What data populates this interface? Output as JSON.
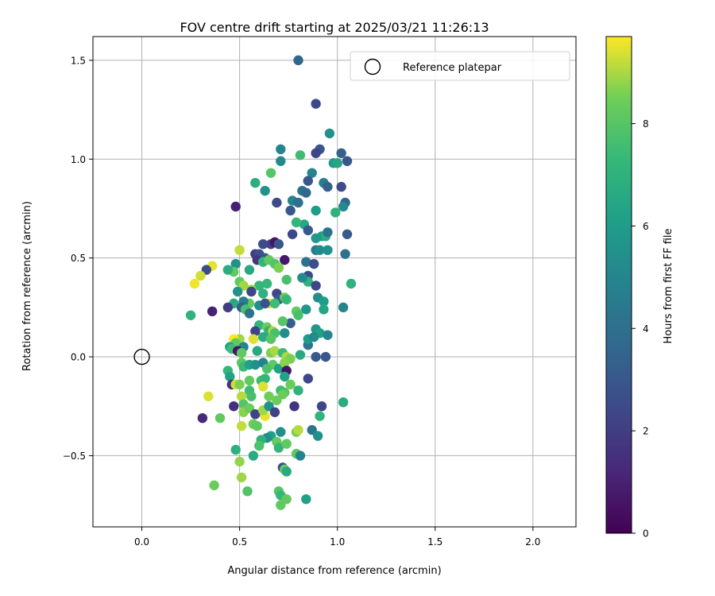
{
  "chart_data": {
    "type": "scatter",
    "title": "FOV centre drift starting at 2025/03/21 11:26:13",
    "xlabel": "Angular distance from reference (arcmin)",
    "ylabel": "Rotation from reference (arcmin)",
    "xlim": [
      -0.25,
      2.22
    ],
    "ylim": [
      -0.86,
      1.62
    ],
    "x_ticks": [
      "0.0",
      "0.5",
      "1.0",
      "1.5",
      "2.0"
    ],
    "x_tick_values": [
      0,
      0.5,
      1.0,
      1.5,
      2.0
    ],
    "y_ticks": [
      "−0.5",
      "0.0",
      "0.5",
      "1.0",
      "1.5"
    ],
    "y_tick_values": [
      -0.5,
      0,
      0.5,
      1.0,
      1.5
    ],
    "grid": true,
    "legend_position": "top-right",
    "legend_label": "Reference platepar",
    "reference_point": [
      0,
      0
    ],
    "colorbar": {
      "label": "Hours from first FF file",
      "range": [
        0,
        9.7
      ],
      "ticks": [
        "0",
        "2",
        "4",
        "6",
        "8"
      ],
      "tick_values": [
        0,
        2,
        4,
        6,
        8
      ],
      "colormap": "viridis"
    },
    "points": [
      [
        0.8,
        1.5,
        3.6
      ],
      [
        0.89,
        1.28,
        2.4
      ],
      [
        0.96,
        1.13,
        5.5
      ],
      [
        0.71,
        1.05,
        5.0
      ],
      [
        0.91,
        1.05,
        2.9
      ],
      [
        0.89,
        1.03,
        2.2
      ],
      [
        1.02,
        1.03,
        3.4
      ],
      [
        1.05,
        0.99,
        3.0
      ],
      [
        0.71,
        0.99,
        5.2
      ],
      [
        0.81,
        1.02,
        7.5
      ],
      [
        0.66,
        0.93,
        8.0
      ],
      [
        0.87,
        0.93,
        5.0
      ],
      [
        0.98,
        0.98,
        6.0
      ],
      [
        1.0,
        0.98,
        6.4
      ],
      [
        0.58,
        0.88,
        6.8
      ],
      [
        0.85,
        0.89,
        3.0
      ],
      [
        0.93,
        0.88,
        4.6
      ],
      [
        0.95,
        0.86,
        3.4
      ],
      [
        1.02,
        0.86,
        2.5
      ],
      [
        0.82,
        0.84,
        4.2
      ],
      [
        0.84,
        0.83,
        3.7
      ],
      [
        0.63,
        0.84,
        5.5
      ],
      [
        0.69,
        0.78,
        2.5
      ],
      [
        0.77,
        0.79,
        5.0
      ],
      [
        0.8,
        0.78,
        4.0
      ],
      [
        1.04,
        0.78,
        3.5
      ],
      [
        1.03,
        0.76,
        5.2
      ],
      [
        0.76,
        0.74,
        3.0
      ],
      [
        0.89,
        0.74,
        6.0
      ],
      [
        0.99,
        0.73,
        7.0
      ],
      [
        0.48,
        0.76,
        1.0
      ],
      [
        0.83,
        0.67,
        6.5
      ],
      [
        0.79,
        0.68,
        7.2
      ],
      [
        0.85,
        0.64,
        3.1
      ],
      [
        0.77,
        0.62,
        2.4
      ],
      [
        0.92,
        0.61,
        6.0
      ],
      [
        0.94,
        0.61,
        6.7
      ],
      [
        0.89,
        0.6,
        5.8
      ],
      [
        1.05,
        0.62,
        3.2
      ],
      [
        0.95,
        0.63,
        4.1
      ],
      [
        0.66,
        0.57,
        2.1
      ],
      [
        0.68,
        0.58,
        0.6
      ],
      [
        0.62,
        0.57,
        2.5
      ],
      [
        0.7,
        0.57,
        3.0
      ],
      [
        0.5,
        0.54,
        9.2
      ],
      [
        0.89,
        0.54,
        4.5
      ],
      [
        0.91,
        0.54,
        5.2
      ],
      [
        0.95,
        0.54,
        5.5
      ],
      [
        1.04,
        0.52,
        4.0
      ],
      [
        0.58,
        0.52,
        2.0
      ],
      [
        0.6,
        0.52,
        2.7
      ],
      [
        0.63,
        0.5,
        3.0
      ],
      [
        0.59,
        0.49,
        1.7
      ],
      [
        0.62,
        0.48,
        7.2
      ],
      [
        0.65,
        0.49,
        8.2
      ],
      [
        0.73,
        0.49,
        0.7
      ],
      [
        0.68,
        0.47,
        7.9
      ],
      [
        0.7,
        0.45,
        8.6
      ],
      [
        0.48,
        0.47,
        5.6
      ],
      [
        0.55,
        0.44,
        6.6
      ],
      [
        0.47,
        0.43,
        8.2
      ],
      [
        0.44,
        0.44,
        6.8
      ],
      [
        0.36,
        0.46,
        9.5
      ],
      [
        0.33,
        0.44,
        2.5
      ],
      [
        0.3,
        0.41,
        9.3
      ],
      [
        0.27,
        0.37,
        9.6
      ],
      [
        0.84,
        0.48,
        4.2
      ],
      [
        0.88,
        0.47,
        2.6
      ],
      [
        0.85,
        0.41,
        2.5
      ],
      [
        0.85,
        0.38,
        7.0
      ],
      [
        0.89,
        0.36,
        2.3
      ],
      [
        0.82,
        0.4,
        5.2
      ],
      [
        1.07,
        0.37,
        7.0
      ],
      [
        0.5,
        0.38,
        8.2
      ],
      [
        0.52,
        0.36,
        8.9
      ],
      [
        0.6,
        0.36,
        7.2
      ],
      [
        0.64,
        0.37,
        7.2
      ],
      [
        0.56,
        0.34,
        8.9
      ],
      [
        0.56,
        0.33,
        2.3
      ],
      [
        0.49,
        0.33,
        5.6
      ],
      [
        0.74,
        0.39,
        7.7
      ],
      [
        0.62,
        0.32,
        7.0
      ],
      [
        0.69,
        0.32,
        2.4
      ],
      [
        0.7,
        0.29,
        3.1
      ],
      [
        0.73,
        0.3,
        8.3
      ],
      [
        0.74,
        0.29,
        7.3
      ],
      [
        0.9,
        0.3,
        5.3
      ],
      [
        0.93,
        0.28,
        6.0
      ],
      [
        0.65,
        0.27,
        9.4
      ],
      [
        0.68,
        0.27,
        7.5
      ],
      [
        0.55,
        0.27,
        8.2
      ],
      [
        0.52,
        0.28,
        4.7
      ],
      [
        0.47,
        0.27,
        6.6
      ],
      [
        0.51,
        0.25,
        3.3
      ],
      [
        0.53,
        0.24,
        7.7
      ],
      [
        0.44,
        0.25,
        2.0
      ],
      [
        0.55,
        0.22,
        4.2
      ],
      [
        0.6,
        0.26,
        5.5
      ],
      [
        0.63,
        0.27,
        2.8
      ],
      [
        0.79,
        0.23,
        8.2
      ],
      [
        0.84,
        0.24,
        5.7
      ],
      [
        0.93,
        0.24,
        6.4
      ],
      [
        1.03,
        0.25,
        5.0
      ],
      [
        0.36,
        0.23,
        1.0
      ],
      [
        0.25,
        0.21,
        7.0
      ],
      [
        0.8,
        0.21,
        7.7
      ],
      [
        0.76,
        0.17,
        3.3
      ],
      [
        0.72,
        0.18,
        8.0
      ],
      [
        0.6,
        0.16,
        7.2
      ],
      [
        0.64,
        0.15,
        8.4
      ],
      [
        0.65,
        0.13,
        6.9
      ],
      [
        0.58,
        0.13,
        2.2
      ],
      [
        0.67,
        0.13,
        9.0
      ],
      [
        0.68,
        0.12,
        7.7
      ],
      [
        0.73,
        0.12,
        5.3
      ],
      [
        0.62,
        0.1,
        6.7
      ],
      [
        0.57,
        0.09,
        9.4
      ],
      [
        0.5,
        0.09,
        8.9
      ],
      [
        0.47,
        0.09,
        9.7
      ],
      [
        0.48,
        0.07,
        8.2
      ],
      [
        0.52,
        0.05,
        5.0
      ],
      [
        0.45,
        0.05,
        6.3
      ],
      [
        0.46,
        0.04,
        7.5
      ],
      [
        0.49,
        0.03,
        0.6
      ],
      [
        0.51,
        0.02,
        8.2
      ],
      [
        0.59,
        0.03,
        6.6
      ],
      [
        0.66,
        0.02,
        8.6
      ],
      [
        0.68,
        0.03,
        9.0
      ],
      [
        0.72,
        0.02,
        7.4
      ],
      [
        0.74,
        0.0,
        9.0
      ],
      [
        0.76,
        -0.01,
        8.6
      ],
      [
        0.81,
        0.01,
        6.6
      ],
      [
        0.85,
        0.06,
        4.3
      ],
      [
        0.85,
        0.09,
        6.0
      ],
      [
        0.89,
        0.14,
        5.7
      ],
      [
        0.91,
        0.12,
        6.2
      ],
      [
        0.88,
        0.1,
        5.2
      ],
      [
        0.95,
        0.11,
        5.0
      ],
      [
        0.89,
        0.0,
        3.1
      ],
      [
        0.94,
        0.0,
        2.9
      ],
      [
        0.66,
        0.09,
        8.0
      ],
      [
        0.51,
        -0.03,
        8.1
      ],
      [
        0.52,
        -0.05,
        7.4
      ],
      [
        0.55,
        -0.04,
        6.2
      ],
      [
        0.58,
        -0.04,
        5.5
      ],
      [
        0.62,
        -0.03,
        4.9
      ],
      [
        0.67,
        -0.04,
        8.2
      ],
      [
        0.7,
        -0.06,
        6.2
      ],
      [
        0.73,
        -0.03,
        8.7
      ],
      [
        0.74,
        -0.07,
        0.6
      ],
      [
        0.64,
        -0.06,
        7.8
      ],
      [
        0.44,
        -0.07,
        7.2
      ],
      [
        0.45,
        -0.1,
        6.3
      ],
      [
        0.46,
        -0.14,
        1.6
      ],
      [
        0.48,
        -0.14,
        9.3
      ],
      [
        0.5,
        -0.14,
        8.6
      ],
      [
        0.55,
        -0.12,
        8.2
      ],
      [
        0.61,
        -0.12,
        7.5
      ],
      [
        0.63,
        -0.11,
        7.2
      ],
      [
        0.62,
        -0.15,
        9.4
      ],
      [
        0.55,
        -0.17,
        7.5
      ],
      [
        0.73,
        -0.1,
        6.2
      ],
      [
        0.76,
        -0.14,
        8.4
      ],
      [
        0.8,
        -0.17,
        7.0
      ],
      [
        0.73,
        -0.18,
        8.0
      ],
      [
        0.85,
        -0.11,
        2.4
      ],
      [
        0.34,
        -0.2,
        9.4
      ],
      [
        0.51,
        -0.2,
        9.1
      ],
      [
        0.56,
        -0.2,
        7.7
      ],
      [
        0.65,
        -0.2,
        8.5
      ],
      [
        0.69,
        -0.22,
        8.4
      ],
      [
        0.71,
        -0.17,
        7.5
      ],
      [
        0.72,
        -0.19,
        8.4
      ],
      [
        0.47,
        -0.25,
        1.5
      ],
      [
        0.52,
        -0.24,
        8.0
      ],
      [
        0.52,
        -0.28,
        8.7
      ],
      [
        0.55,
        -0.26,
        8.4
      ],
      [
        0.58,
        -0.29,
        2.2
      ],
      [
        0.63,
        -0.3,
        9.5
      ],
      [
        0.62,
        -0.27,
        8.9
      ],
      [
        0.65,
        -0.25,
        5.6
      ],
      [
        0.68,
        -0.28,
        2.2
      ],
      [
        0.78,
        -0.25,
        1.7
      ],
      [
        0.92,
        -0.25,
        2.3
      ],
      [
        1.03,
        -0.23,
        6.8
      ],
      [
        0.31,
        -0.31,
        1.2
      ],
      [
        0.4,
        -0.31,
        8.2
      ],
      [
        0.51,
        -0.35,
        9.2
      ],
      [
        0.57,
        -0.34,
        8.4
      ],
      [
        0.59,
        -0.35,
        8.2
      ],
      [
        0.91,
        -0.3,
        7.1
      ],
      [
        0.79,
        -0.38,
        8.5
      ],
      [
        0.8,
        -0.37,
        9.1
      ],
      [
        0.87,
        -0.37,
        4.3
      ],
      [
        0.9,
        -0.4,
        5.5
      ],
      [
        0.71,
        -0.38,
        5.4
      ],
      [
        0.66,
        -0.4,
        6.2
      ],
      [
        0.64,
        -0.41,
        5.4
      ],
      [
        0.61,
        -0.42,
        7.0
      ],
      [
        0.6,
        -0.45,
        7.8
      ],
      [
        0.69,
        -0.43,
        8.3
      ],
      [
        0.7,
        -0.46,
        7.2
      ],
      [
        0.74,
        -0.44,
        8.2
      ],
      [
        0.48,
        -0.47,
        6.9
      ],
      [
        0.57,
        -0.5,
        6.7
      ],
      [
        0.79,
        -0.49,
        8.2
      ],
      [
        0.81,
        -0.5,
        4.9
      ],
      [
        0.5,
        -0.53,
        8.8
      ],
      [
        0.72,
        -0.56,
        2.7
      ],
      [
        0.73,
        -0.57,
        8.4
      ],
      [
        0.74,
        -0.58,
        6.6
      ],
      [
        0.51,
        -0.61,
        8.9
      ],
      [
        0.37,
        -0.65,
        8.4
      ],
      [
        0.54,
        -0.68,
        7.9
      ],
      [
        0.7,
        -0.68,
        8.0
      ],
      [
        0.71,
        -0.7,
        7.3
      ],
      [
        0.74,
        -0.72,
        8.3
      ],
      [
        0.84,
        -0.72,
        6.2
      ],
      [
        0.71,
        -0.75,
        8.2
      ]
    ]
  }
}
